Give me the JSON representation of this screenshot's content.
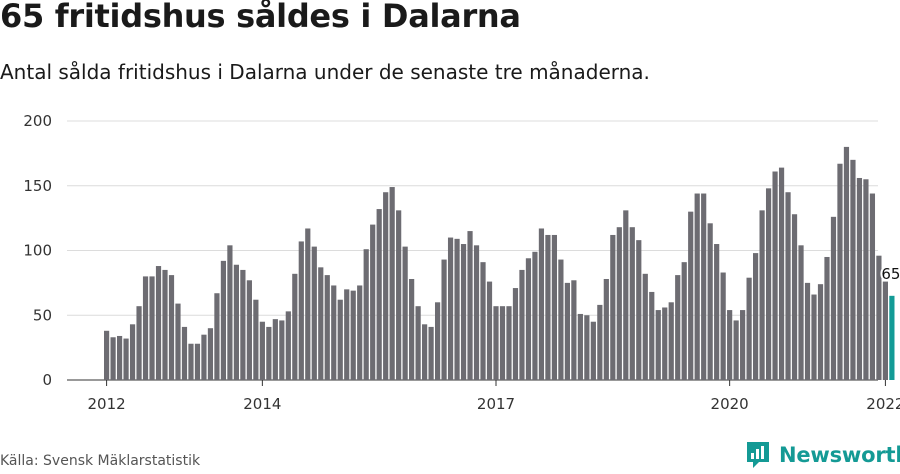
{
  "header": {
    "title": "65 fritidshus såldes i Dalarna",
    "subtitle": "Antal sålda fritidshus i Dalarna under de senaste tre månaderna."
  },
  "footer": {
    "source": "Källa: Svensk Mäklarstatistik",
    "brand": "Newsworthy"
  },
  "colors": {
    "bar": "#6d6c72",
    "highlight": "#139b96",
    "brand": "#149a95"
  },
  "chart_data": {
    "type": "bar",
    "title": "65 fritidshus såldes i Dalarna",
    "subtitle": "Antal sålda fritidshus i Dalarna under de senaste tre månaderna.",
    "ylim": [
      0,
      200
    ],
    "yticks": [
      0,
      50,
      100,
      150,
      200
    ],
    "x_tick_labels": [
      "2012",
      "2014",
      "2017",
      "2020",
      "2022"
    ],
    "x_tick_months": [
      "2012-01",
      "2014-01",
      "2017-01",
      "2020-01",
      "2022-01"
    ],
    "grid": true,
    "highlight_label": "65",
    "categories": [
      "2012-01",
      "2012-02",
      "2012-03",
      "2012-04",
      "2012-05",
      "2012-06",
      "2012-07",
      "2012-08",
      "2012-09",
      "2012-10",
      "2012-11",
      "2012-12",
      "2013-01",
      "2013-02",
      "2013-03",
      "2013-04",
      "2013-05",
      "2013-06",
      "2013-07",
      "2013-08",
      "2013-09",
      "2013-10",
      "2013-11",
      "2013-12",
      "2014-01",
      "2014-02",
      "2014-03",
      "2014-04",
      "2014-05",
      "2014-06",
      "2014-07",
      "2014-08",
      "2014-09",
      "2014-10",
      "2014-11",
      "2014-12",
      "2015-01",
      "2015-02",
      "2015-03",
      "2015-04",
      "2015-05",
      "2015-06",
      "2015-07",
      "2015-08",
      "2015-09",
      "2015-10",
      "2015-11",
      "2015-12",
      "2016-01",
      "2016-02",
      "2016-03",
      "2016-04",
      "2016-05",
      "2016-06",
      "2016-07",
      "2016-08",
      "2016-09",
      "2016-10",
      "2016-11",
      "2016-12",
      "2017-01",
      "2017-02",
      "2017-03",
      "2017-04",
      "2017-05",
      "2017-06",
      "2017-07",
      "2017-08",
      "2017-09",
      "2017-10",
      "2017-11",
      "2017-12",
      "2018-01",
      "2018-02",
      "2018-03",
      "2018-04",
      "2018-05",
      "2018-06",
      "2018-07",
      "2018-08",
      "2018-09",
      "2018-10",
      "2018-11",
      "2018-12",
      "2019-01",
      "2019-02",
      "2019-03",
      "2019-04",
      "2019-05",
      "2019-06",
      "2019-07",
      "2019-08",
      "2019-09",
      "2019-10",
      "2019-11",
      "2019-12",
      "2020-01",
      "2020-02",
      "2020-03",
      "2020-04",
      "2020-05",
      "2020-06",
      "2020-07",
      "2020-08",
      "2020-09",
      "2020-10",
      "2020-11",
      "2020-12",
      "2021-01",
      "2021-02",
      "2021-03",
      "2021-04",
      "2021-05",
      "2021-06",
      "2021-07",
      "2021-08",
      "2021-09",
      "2021-10",
      "2021-11",
      "2021-12",
      "2022-01",
      "2022-02"
    ],
    "values": [
      38,
      33,
      34,
      32,
      43,
      57,
      80,
      80,
      88,
      85,
      81,
      59,
      41,
      28,
      28,
      35,
      40,
      67,
      92,
      104,
      89,
      85,
      77,
      62,
      45,
      41,
      47,
      46,
      53,
      82,
      107,
      117,
      103,
      87,
      81,
      73,
      62,
      70,
      69,
      73,
      101,
      120,
      132,
      145,
      149,
      131,
      103,
      78,
      57,
      43,
      41,
      60,
      93,
      110,
      109,
      105,
      115,
      104,
      91,
      76,
      57,
      57,
      57,
      71,
      85,
      94,
      99,
      117,
      112,
      112,
      93,
      75,
      77,
      51,
      50,
      45,
      58,
      78,
      112,
      118,
      131,
      118,
      108,
      82,
      68,
      54,
      56,
      60,
      81,
      91,
      130,
      144,
      144,
      121,
      105,
      83,
      54,
      46,
      54,
      79,
      98,
      131,
      148,
      161,
      164,
      145,
      128,
      104,
      75,
      66,
      74,
      95,
      126,
      167,
      180,
      170,
      156,
      155,
      144,
      96,
      76,
      65
    ]
  }
}
